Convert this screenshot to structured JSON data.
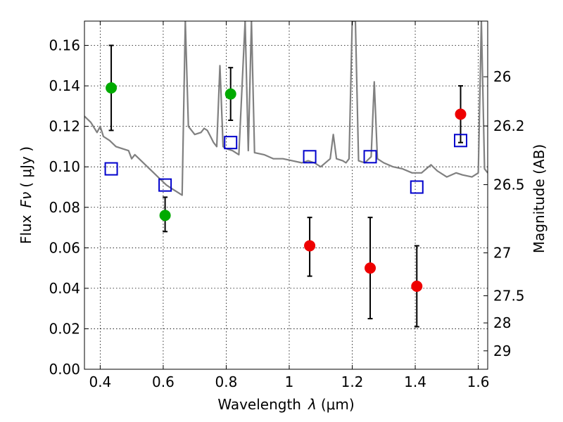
{
  "chart_data": {
    "type": "scatter",
    "xlabel": "Wavelength",
    "xlabel_symbol": "λ",
    "xlabel_unit": "(μm)",
    "ylabel": "Flux",
    "ylabel_symbol": "Fν",
    "ylabel_unit": "( μJy )",
    "y2label": "Magnitude (AB)",
    "xlim": [
      0.35,
      1.63
    ],
    "ylim": [
      0.0,
      0.172
    ],
    "grid": true,
    "x_ticks": [
      0.4,
      0.6,
      0.8,
      1.0,
      1.2,
      1.4,
      1.6
    ],
    "x_tick_labels": [
      "0.4",
      "0.6",
      "0.8",
      "1",
      "1.2",
      "1.4",
      "1.6"
    ],
    "y_ticks": [
      0.0,
      0.02,
      0.04,
      0.06,
      0.08,
      0.1,
      0.12,
      0.14,
      0.16
    ],
    "y_tick_labels": [
      "0.00",
      "0.02",
      "0.04",
      "0.06",
      "0.08",
      "0.10",
      "0.12",
      "0.14",
      "0.16"
    ],
    "y2_ticks": [
      {
        "label": "26",
        "flux": 0.1445
      },
      {
        "label": "26.2",
        "flux": 0.1202
      },
      {
        "label": "26.5",
        "flux": 0.0912
      },
      {
        "label": "27",
        "flux": 0.0575
      },
      {
        "label": "27.5",
        "flux": 0.0363
      },
      {
        "label": "28",
        "flux": 0.0229
      },
      {
        "label": "29",
        "flux": 0.0091
      }
    ],
    "series": [
      {
        "marker": "circle",
        "color": "#00aa00",
        "points": [
          {
            "x": 0.435,
            "y": 0.139,
            "ylo": 0.118,
            "yhi": 0.16
          },
          {
            "x": 0.606,
            "y": 0.076,
            "ylo": 0.068,
            "yhi": 0.085
          },
          {
            "x": 0.814,
            "y": 0.136,
            "ylo": 0.123,
            "yhi": 0.149
          }
        ]
      },
      {
        "marker": "circle",
        "color": "#ee0000",
        "points": [
          {
            "x": 1.065,
            "y": 0.061,
            "ylo": 0.046,
            "yhi": 0.075
          },
          {
            "x": 1.257,
            "y": 0.05,
            "ylo": 0.025,
            "yhi": 0.075
          },
          {
            "x": 1.405,
            "y": 0.041,
            "ylo": 0.021,
            "yhi": 0.061
          },
          {
            "x": 1.544,
            "y": 0.126,
            "ylo": 0.112,
            "yhi": 0.14
          }
        ]
      },
      {
        "marker": "open-square",
        "color": "#0000cc",
        "points": [
          {
            "x": 0.435,
            "y": 0.099
          },
          {
            "x": 0.606,
            "y": 0.091
          },
          {
            "x": 0.814,
            "y": 0.112
          },
          {
            "x": 1.065,
            "y": 0.105
          },
          {
            "x": 1.257,
            "y": 0.105
          },
          {
            "x": 1.405,
            "y": 0.09
          },
          {
            "x": 1.544,
            "y": 0.113
          }
        ]
      },
      {
        "marker": "line",
        "color": "#808080",
        "points": [
          [
            0.35,
            0.125
          ],
          [
            0.37,
            0.122
          ],
          [
            0.39,
            0.117
          ],
          [
            0.4,
            0.12
          ],
          [
            0.41,
            0.115
          ],
          [
            0.43,
            0.113
          ],
          [
            0.45,
            0.11
          ],
          [
            0.47,
            0.109
          ],
          [
            0.49,
            0.108
          ],
          [
            0.5,
            0.104
          ],
          [
            0.51,
            0.106
          ],
          [
            0.53,
            0.103
          ],
          [
            0.55,
            0.1
          ],
          [
            0.57,
            0.097
          ],
          [
            0.59,
            0.094
          ],
          [
            0.61,
            0.091
          ],
          [
            0.63,
            0.089
          ],
          [
            0.65,
            0.087
          ],
          [
            0.66,
            0.086
          ],
          [
            0.67,
            0.172
          ],
          [
            0.68,
            0.12
          ],
          [
            0.69,
            0.118
          ],
          [
            0.7,
            0.116
          ],
          [
            0.72,
            0.117
          ],
          [
            0.73,
            0.119
          ],
          [
            0.74,
            0.118
          ],
          [
            0.75,
            0.115
          ],
          [
            0.76,
            0.112
          ],
          [
            0.77,
            0.11
          ],
          [
            0.78,
            0.15
          ],
          [
            0.79,
            0.11
          ],
          [
            0.8,
            0.109
          ],
          [
            0.82,
            0.108
          ],
          [
            0.84,
            0.106
          ],
          [
            0.86,
            0.172
          ],
          [
            0.87,
            0.108
          ],
          [
            0.88,
            0.172
          ],
          [
            0.89,
            0.107
          ],
          [
            0.92,
            0.106
          ],
          [
            0.95,
            0.104
          ],
          [
            0.98,
            0.104
          ],
          [
            1.01,
            0.103
          ],
          [
            1.04,
            0.102
          ],
          [
            1.06,
            0.103
          ],
          [
            1.08,
            0.102
          ],
          [
            1.1,
            0.1
          ],
          [
            1.13,
            0.104
          ],
          [
            1.14,
            0.116
          ],
          [
            1.15,
            0.104
          ],
          [
            1.17,
            0.103
          ],
          [
            1.18,
            0.102
          ],
          [
            1.19,
            0.104
          ],
          [
            1.2,
            0.172
          ],
          [
            1.21,
            0.172
          ],
          [
            1.22,
            0.103
          ],
          [
            1.24,
            0.102
          ],
          [
            1.26,
            0.105
          ],
          [
            1.27,
            0.142
          ],
          [
            1.28,
            0.104
          ],
          [
            1.3,
            0.102
          ],
          [
            1.33,
            0.1
          ],
          [
            1.36,
            0.099
          ],
          [
            1.39,
            0.097
          ],
          [
            1.42,
            0.097
          ],
          [
            1.45,
            0.101
          ],
          [
            1.47,
            0.098
          ],
          [
            1.5,
            0.095
          ],
          [
            1.53,
            0.097
          ],
          [
            1.55,
            0.096
          ],
          [
            1.58,
            0.095
          ],
          [
            1.6,
            0.097
          ],
          [
            1.61,
            0.172
          ],
          [
            1.62,
            0.099
          ],
          [
            1.63,
            0.097
          ]
        ]
      }
    ]
  }
}
